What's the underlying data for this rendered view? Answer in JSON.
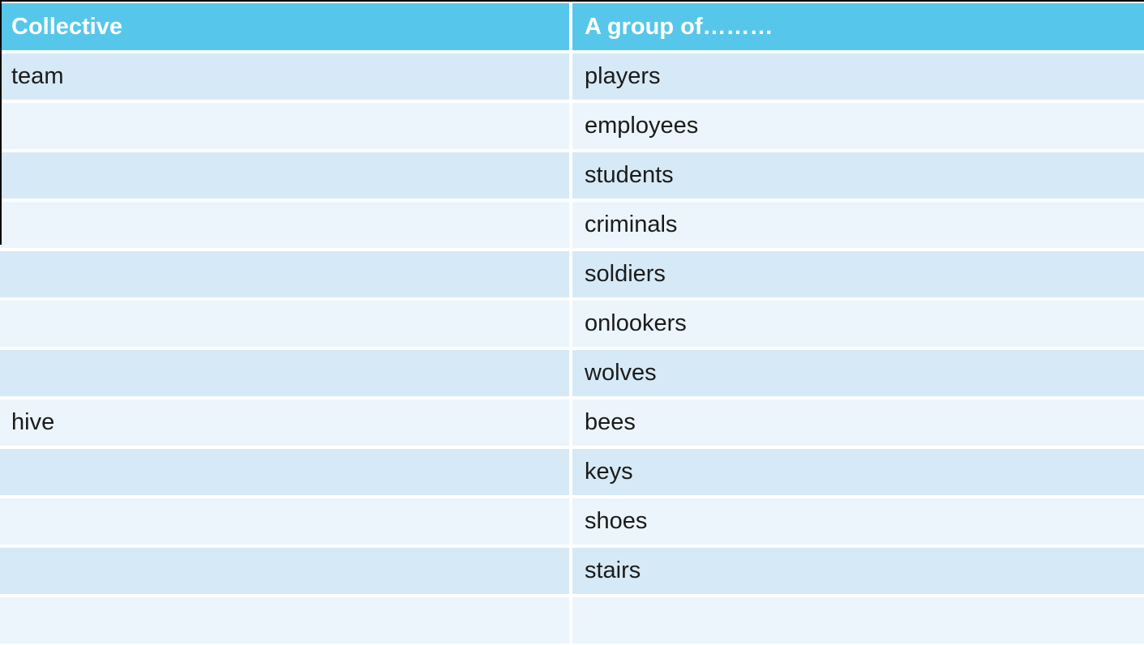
{
  "table": {
    "columns": [
      {
        "label": "Collective"
      },
      {
        "label": "A group of………"
      }
    ],
    "rows": [
      {
        "collective": "team",
        "group": "players"
      },
      {
        "collective": "",
        "group": "employees"
      },
      {
        "collective": "",
        "group": "students"
      },
      {
        "collective": "",
        "group": "criminals"
      },
      {
        "collective": "",
        "group": "soldiers"
      },
      {
        "collective": "",
        "group": "onlookers"
      },
      {
        "collective": "",
        "group": "wolves"
      },
      {
        "collective": "hive",
        "group": "bees"
      },
      {
        "collective": "",
        "group": "keys"
      },
      {
        "collective": "",
        "group": "shoes"
      },
      {
        "collective": "",
        "group": "stairs"
      },
      {
        "collective": "",
        "group": ""
      }
    ]
  },
  "colors": {
    "header_bg": "#56C7EB",
    "header_text": "#FFFFFF",
    "row_dark": "#D6E9F6",
    "row_light": "#EBF5FB",
    "body_text": "#1B1B1B",
    "edge_line": "#000000",
    "background": "#FFFFFF"
  }
}
